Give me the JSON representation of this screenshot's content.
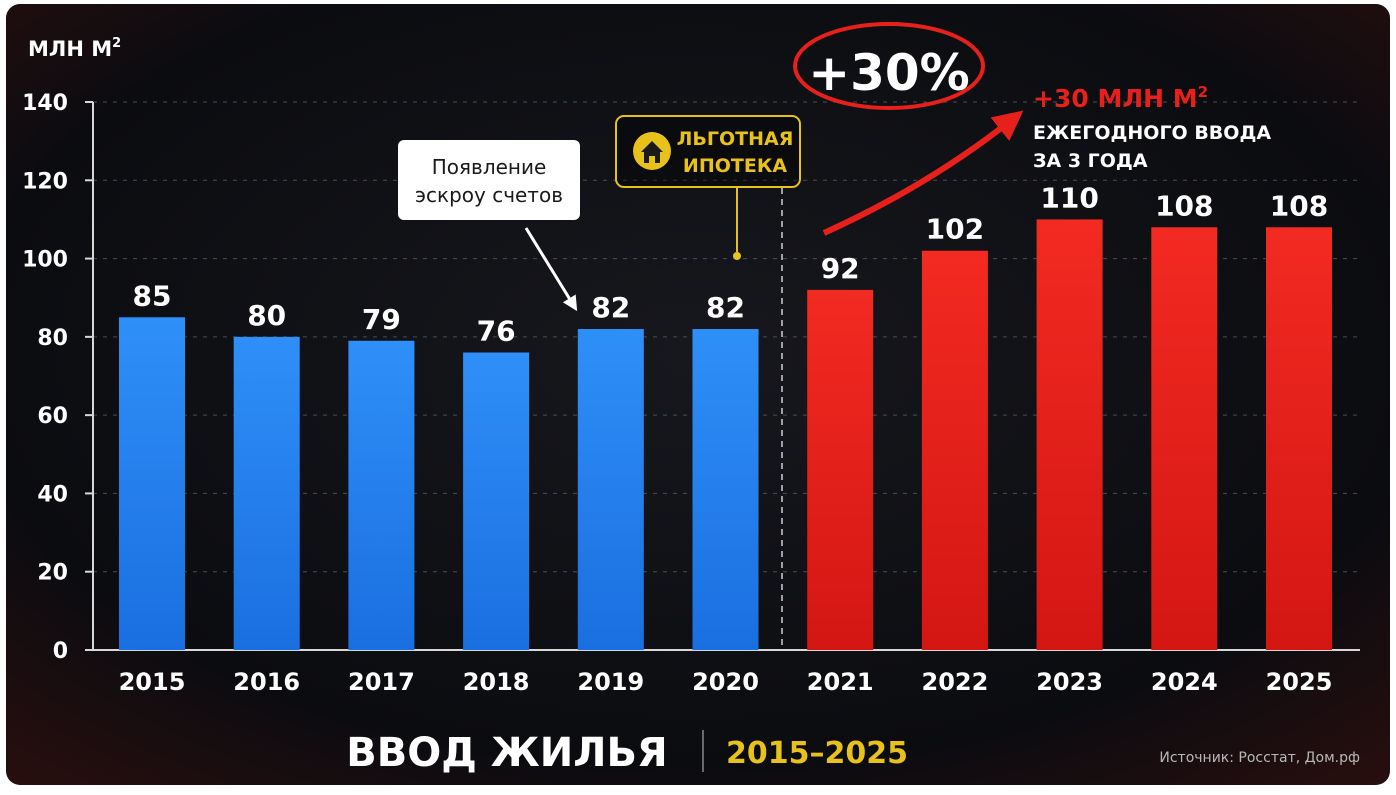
{
  "chart_data": {
    "type": "bar",
    "title": "ВВОД ЖИЛЬЯ",
    "subtitle": "2015–2025",
    "ylabel_prefix": "МЛН М",
    "ylabel_sup": "2",
    "ylim": [
      0,
      140
    ],
    "yticks": [
      "0",
      "20",
      "40",
      "60",
      "80",
      "100",
      "120",
      "140"
    ],
    "grid": true,
    "categories": [
      "2015",
      "2016",
      "2017",
      "2018",
      "2019",
      "2020",
      "2021",
      "2022",
      "2023",
      "2024",
      "2025"
    ],
    "values": [
      85,
      80,
      79,
      76,
      82,
      82,
      92,
      102,
      110,
      108,
      108
    ],
    "value_labels": [
      "85",
      "80",
      "79",
      "76",
      "82",
      "82",
      "92",
      "102",
      "110",
      "108",
      "108"
    ],
    "colors": {
      "before": "#1f7ff0",
      "after": "#e8201c",
      "highlight": "#e8c21a",
      "background": "#0d0e12",
      "text": "#ffffff",
      "grid": "#4a4d55"
    },
    "annotations": {
      "escrow": [
        "Появление",
        "эскроу счетов"
      ],
      "mortgage": [
        "ЛЬГОТНАЯ",
        "ИПОТЕКА"
      ],
      "growth_pct": "+30%",
      "growth_abs_prefix": "+30 МЛН М",
      "growth_abs_sup": "2",
      "growth_desc": [
        "ЕЖЕГОДНОГО ВВОДА",
        "ЗА 3 ГОДА"
      ]
    },
    "source": "Источник: Росстат, Дом.рф"
  }
}
